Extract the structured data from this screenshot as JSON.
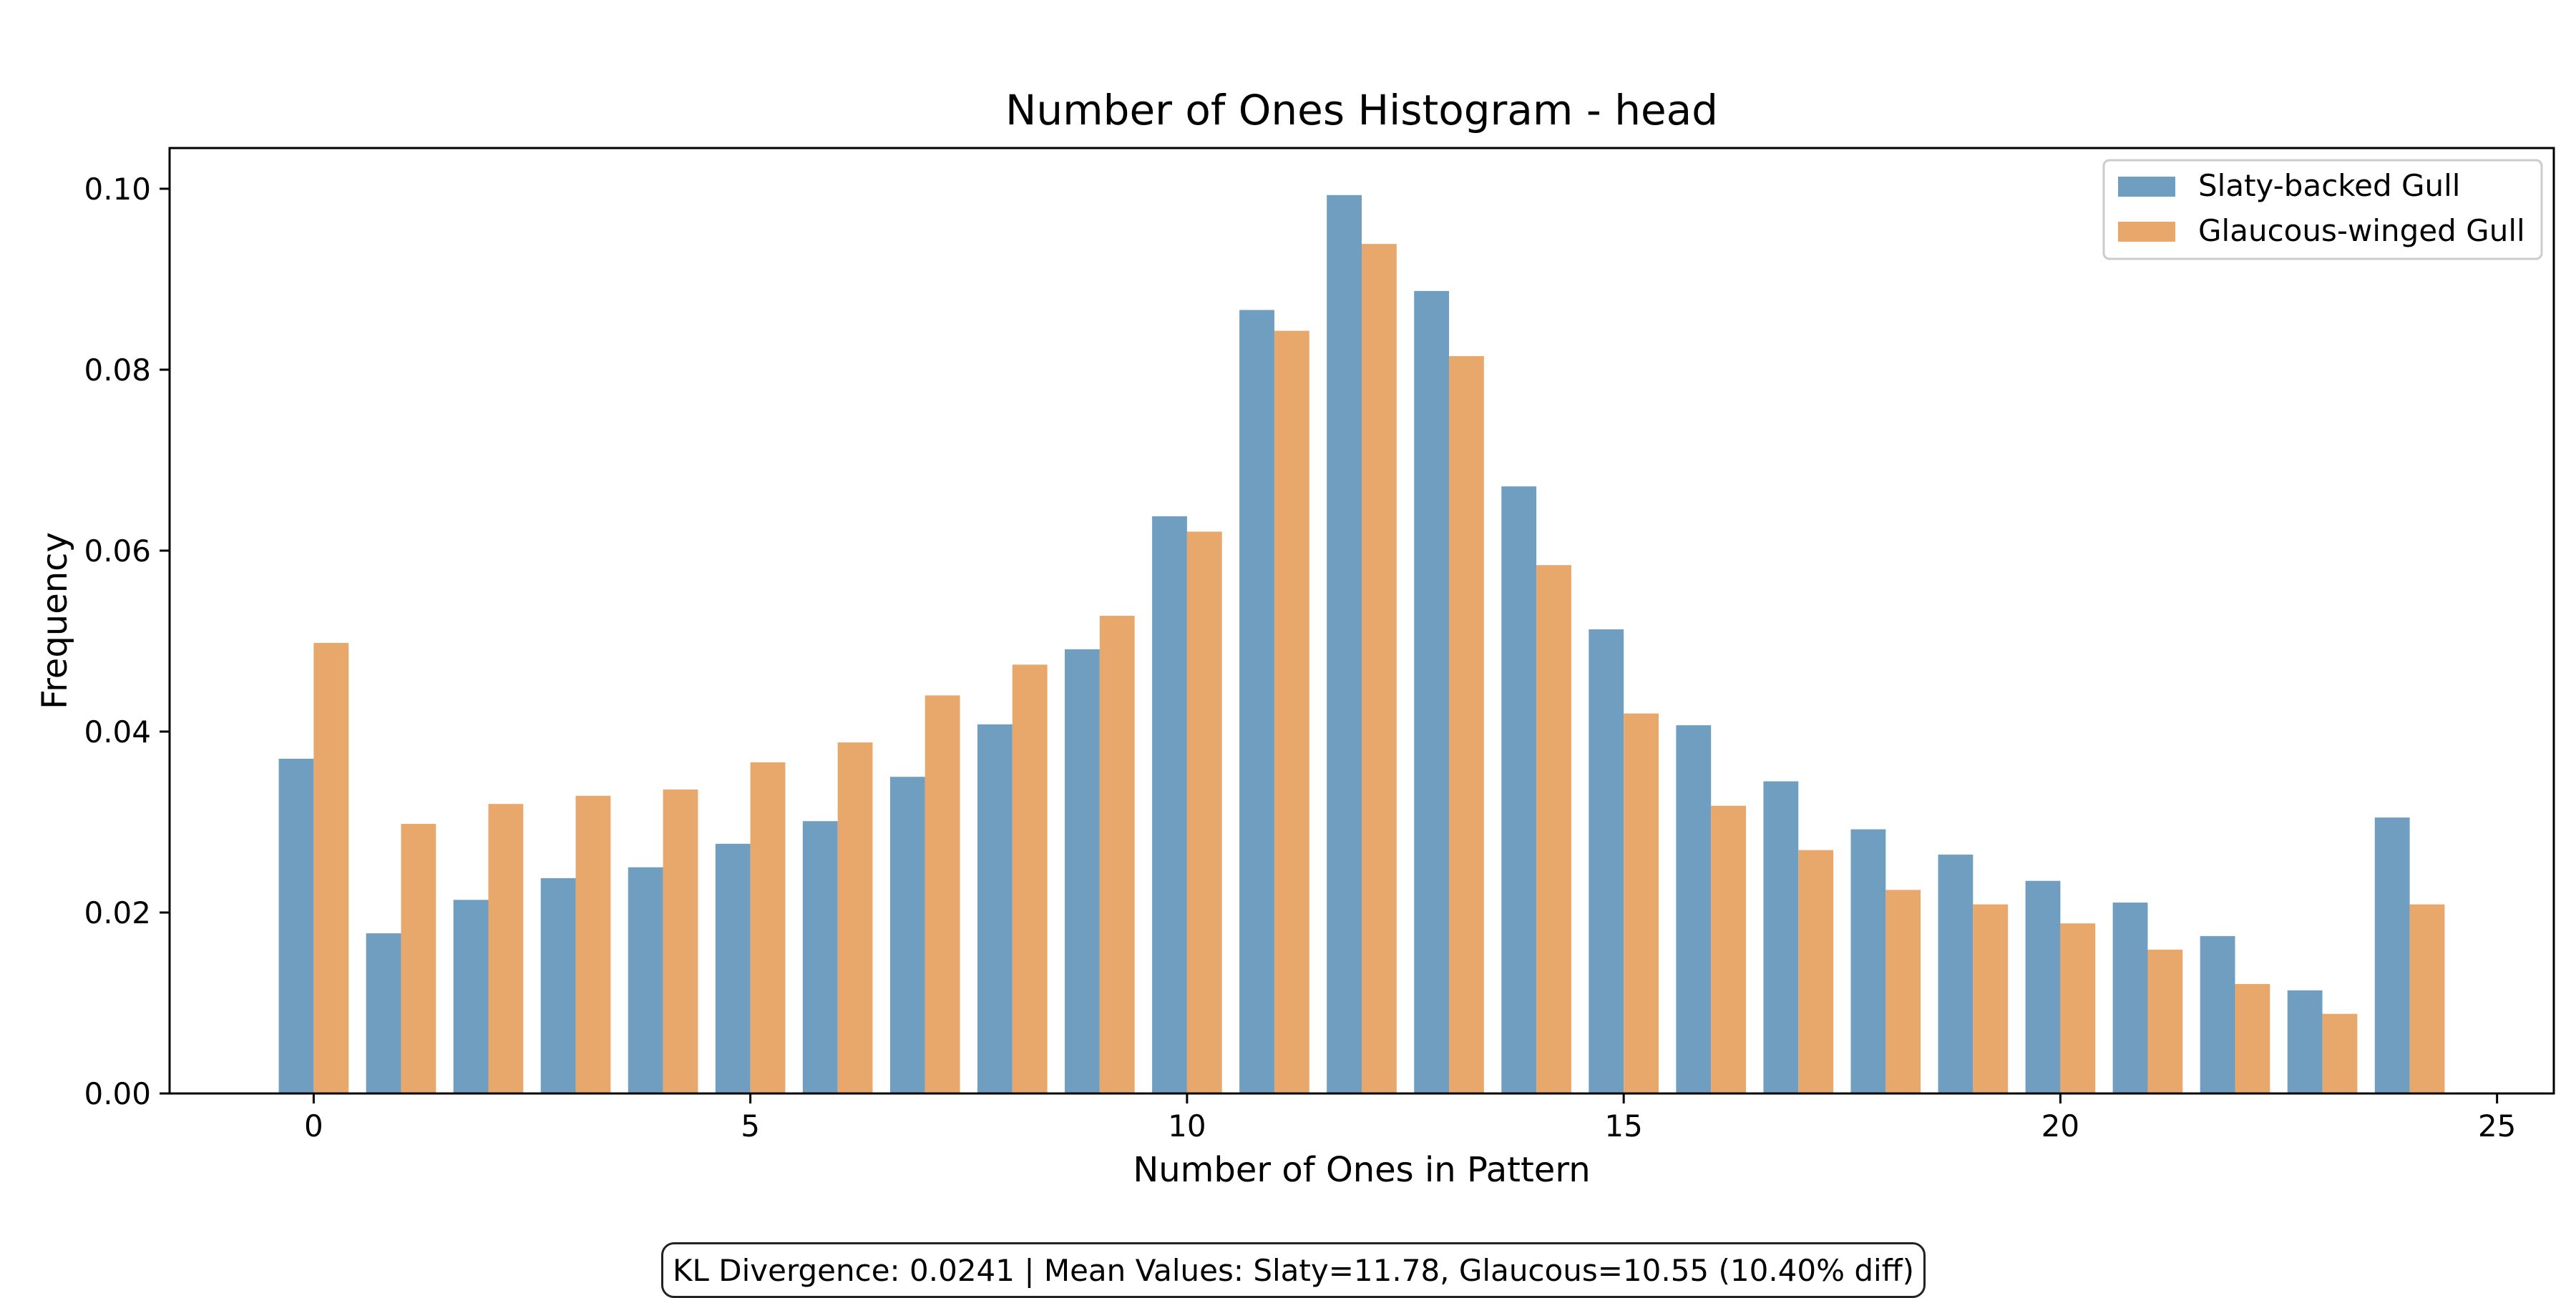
{
  "chart_data": {
    "type": "bar",
    "title": "Number of Ones Histogram - head",
    "xlabel": "Number of Ones in Pattern",
    "ylabel": "Frequency",
    "xlim": [
      -1.65,
      25.65
    ],
    "ylim": [
      0,
      0.1045
    ],
    "xticks": [
      0,
      5,
      10,
      15,
      20,
      25
    ],
    "yticks": [
      0.0,
      0.02,
      0.04,
      0.06,
      0.08,
      0.1
    ],
    "ytick_labels": [
      "0.00",
      "0.02",
      "0.04",
      "0.06",
      "0.08",
      "0.10"
    ],
    "x": [
      0,
      1,
      2,
      3,
      4,
      5,
      6,
      7,
      8,
      9,
      10,
      11,
      12,
      13,
      14,
      15,
      16,
      17,
      18,
      19,
      20,
      21,
      22,
      23,
      24
    ],
    "legend_position": "top-right",
    "grid": false,
    "series": [
      {
        "name": "Slaty-backed Gull",
        "color": "#6f9ec1",
        "values": [
          0.037,
          0.0177,
          0.0214,
          0.0238,
          0.025,
          0.0276,
          0.0301,
          0.035,
          0.0408,
          0.0491,
          0.0638,
          0.0866,
          0.0993,
          0.0887,
          0.0671,
          0.0513,
          0.0407,
          0.0345,
          0.0292,
          0.0264,
          0.0235,
          0.0211,
          0.0174,
          0.0114,
          0.0305
        ]
      },
      {
        "name": "Glaucous-winged Gull",
        "color": "#e8a76b",
        "values": [
          0.0498,
          0.0298,
          0.032,
          0.0329,
          0.0336,
          0.0366,
          0.0388,
          0.044,
          0.0474,
          0.0528,
          0.0621,
          0.0843,
          0.0939,
          0.0815,
          0.0584,
          0.042,
          0.0318,
          0.0269,
          0.0225,
          0.0209,
          0.0188,
          0.0159,
          0.0121,
          0.0088,
          0.0209
        ]
      }
    ]
  },
  "footer": {
    "text": "KL Divergence: 0.0241 | Mean Values: Slaty=11.78, Glaucous=10.55 (10.40% diff)"
  }
}
